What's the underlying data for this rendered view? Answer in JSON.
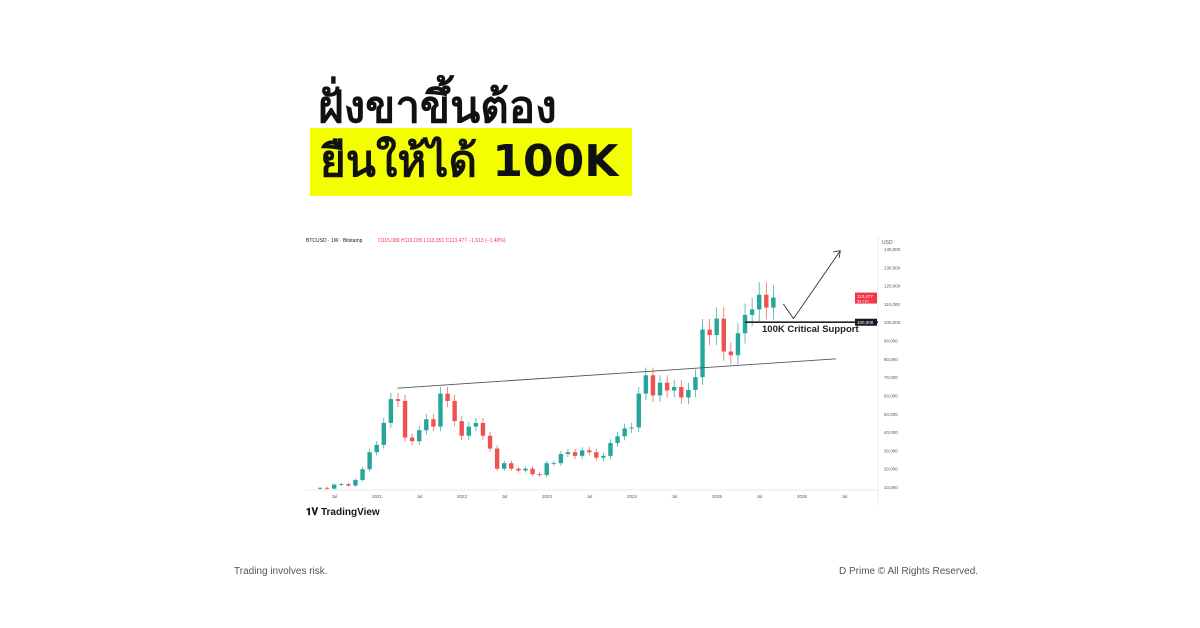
{
  "headline": {
    "line1": "ฝั่งขาขึ้นต้อง",
    "line2": "ยืนให้ได้ 100K"
  },
  "colors": {
    "highlight": "#f3ff00",
    "up": "#26a69a",
    "down": "#ef5350",
    "price_label": "#f23645"
  },
  "footer": {
    "left": "Trading involves risk.",
    "right": "D Prime © All Rights Reserved."
  },
  "branding": "TradingView",
  "chart_data": {
    "type": "candlestick",
    "header": {
      "symbol": "BTCUSD · 1W · Bitstamp",
      "o": "O115,089",
      "h": "H116,035",
      "l": "L113,351",
      "c": "C113,477",
      "chg": "−1,613 (−1.40%)"
    },
    "currency": "USD",
    "ylim": [
      10000,
      140000
    ],
    "yticks": [
      "140,000",
      "130,000",
      "120,000",
      "110,000",
      "100,000",
      "90,000",
      "80,000",
      "70,000",
      "60,000",
      "50,000",
      "40,000",
      "30,000",
      "20,000",
      "10,000"
    ],
    "ytick_values": [
      140000,
      130000,
      120000,
      110000,
      100000,
      90000,
      80000,
      70000,
      60000,
      50000,
      40000,
      30000,
      20000,
      10000
    ],
    "xticks": [
      "Jul",
      "2021",
      "Jul",
      "2022",
      "Jul",
      "2023",
      "Jul",
      "2024",
      "Jul",
      "2025",
      "Jul",
      "2026",
      "Jul"
    ],
    "xtick_values": [
      2020.5,
      2021,
      2021.5,
      2022,
      2022.5,
      2023,
      2023.5,
      2024,
      2024.5,
      2025,
      2025.5,
      2026,
      2026.5
    ],
    "xlim": [
      2020.15,
      2026.9
    ],
    "start": 2020.33,
    "step_years": 0.08333,
    "closes": [
      9500,
      9100,
      11300,
      11600,
      10800,
      13800,
      19700,
      29000,
      33000,
      45000,
      58000,
      57000,
      37000,
      35000,
      41000,
      47000,
      43000,
      61000,
      57000,
      46000,
      38000,
      43000,
      45000,
      38000,
      31000,
      20000,
      23000,
      20000,
      19000,
      20000,
      17000,
      16500,
      23000,
      23000,
      28000,
      29000,
      27000,
      30000,
      29000,
      26000,
      27000,
      34000,
      37700,
      42000,
      42500,
      61000,
      71000,
      60000,
      67000,
      62700,
      64600,
      58900,
      63000,
      70000,
      96000,
      93000,
      102000,
      84000,
      82000,
      94000,
      104000,
      107000,
      115000,
      108000,
      113477
    ],
    "last_price": "113,477",
    "last_countdown": "5d 21h",
    "support": {
      "value": 100000,
      "label": "100K Critical Support",
      "tag": "100,000",
      "from": 2025.33
    },
    "trendline": [
      [
        2021.24,
        64000
      ],
      [
        2026.4,
        80000
      ]
    ],
    "projection_arrow": [
      [
        2025.78,
        110000
      ],
      [
        2025.9,
        102000
      ],
      [
        2026.45,
        139000
      ]
    ]
  }
}
